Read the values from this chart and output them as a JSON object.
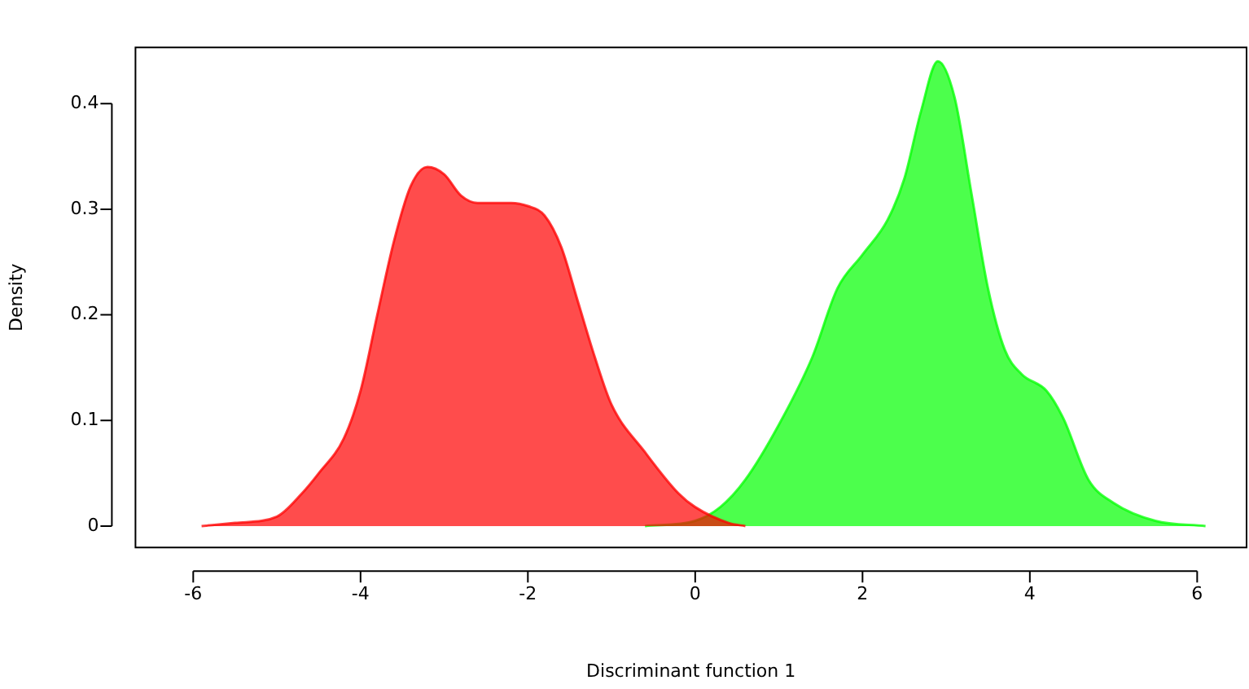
{
  "chart_data": {
    "type": "area",
    "xlabel": "Discriminant function 1",
    "ylabel": "Density",
    "xlim": [
      -6.7,
      6.6
    ],
    "ylim": [
      -0.021,
      0.454
    ],
    "xticks": [
      -6,
      -4,
      -2,
      0,
      2,
      4,
      6
    ],
    "yticks": [
      0,
      0.1,
      0.2,
      0.3,
      0.4
    ],
    "grid": false,
    "legend": false,
    "marker": "none",
    "series": [
      {
        "color": "#ff0000",
        "x": [
          -5.9,
          -5.5,
          -5,
          -4.7,
          -4.5,
          -4.2,
          -4,
          -3.8,
          -3.6,
          -3.4,
          -3.2,
          -3,
          -2.8,
          -2.6,
          -2.2,
          -2,
          -1.8,
          -1.6,
          -1.4,
          -1.2,
          -1,
          -0.6,
          -0.2,
          0,
          0.4,
          0.6
        ],
        "values": [
          0,
          0.003,
          0.009,
          0.031,
          0.05,
          0.083,
          0.128,
          0.2,
          0.27,
          0.322,
          0.34,
          0.333,
          0.313,
          0.306,
          0.306,
          0.303,
          0.294,
          0.264,
          0.212,
          0.16,
          0.115,
          0.07,
          0.031,
          0.018,
          0.003,
          0
        ]
      },
      {
        "color": "#00ff00",
        "x": [
          -0.6,
          0,
          0.3,
          0.6,
          1,
          1.4,
          1.7,
          2,
          2.3,
          2.5,
          2.7,
          2.9,
          3.1,
          3.3,
          3.5,
          3.7,
          3.9,
          4.2,
          4.4,
          4.7,
          5,
          5.5,
          6.1
        ],
        "values": [
          0,
          0.005,
          0.018,
          0.044,
          0.096,
          0.16,
          0.225,
          0.257,
          0.29,
          0.329,
          0.393,
          0.44,
          0.406,
          0.316,
          0.225,
          0.167,
          0.144,
          0.128,
          0.102,
          0.044,
          0.022,
          0.005,
          0
        ]
      }
    ]
  }
}
